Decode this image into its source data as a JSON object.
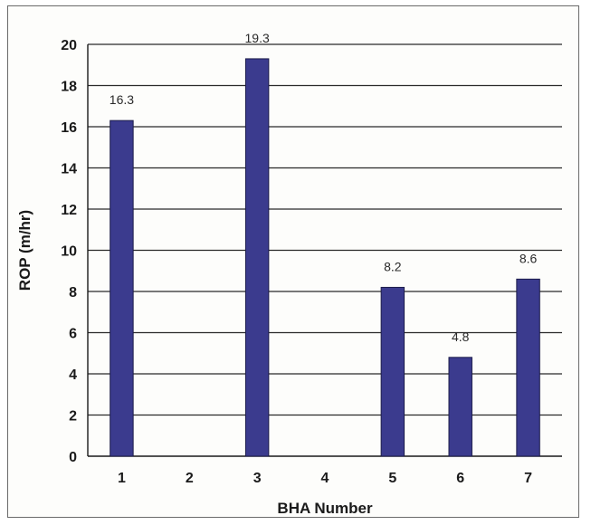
{
  "chart_data": {
    "type": "bar",
    "title": "",
    "xlabel": "BHA Number",
    "ylabel": "ROP (m/hr)",
    "categories": [
      "1",
      "2",
      "3",
      "4",
      "5",
      "6",
      "7"
    ],
    "values": [
      16.3,
      null,
      19.3,
      null,
      8.2,
      4.8,
      8.6
    ],
    "data_labels": [
      "16.3",
      "",
      "19.3",
      "",
      "8.2",
      "4.8",
      "8.6"
    ],
    "ylim": [
      0,
      20
    ],
    "yticks": [
      "0",
      "2",
      "4",
      "6",
      "8",
      "10",
      "12",
      "14",
      "16",
      "18",
      "20"
    ],
    "grid": true,
    "legend": "none",
    "colors": {
      "bar": "#3b3b8e",
      "grid": "#2a2a2a"
    }
  }
}
